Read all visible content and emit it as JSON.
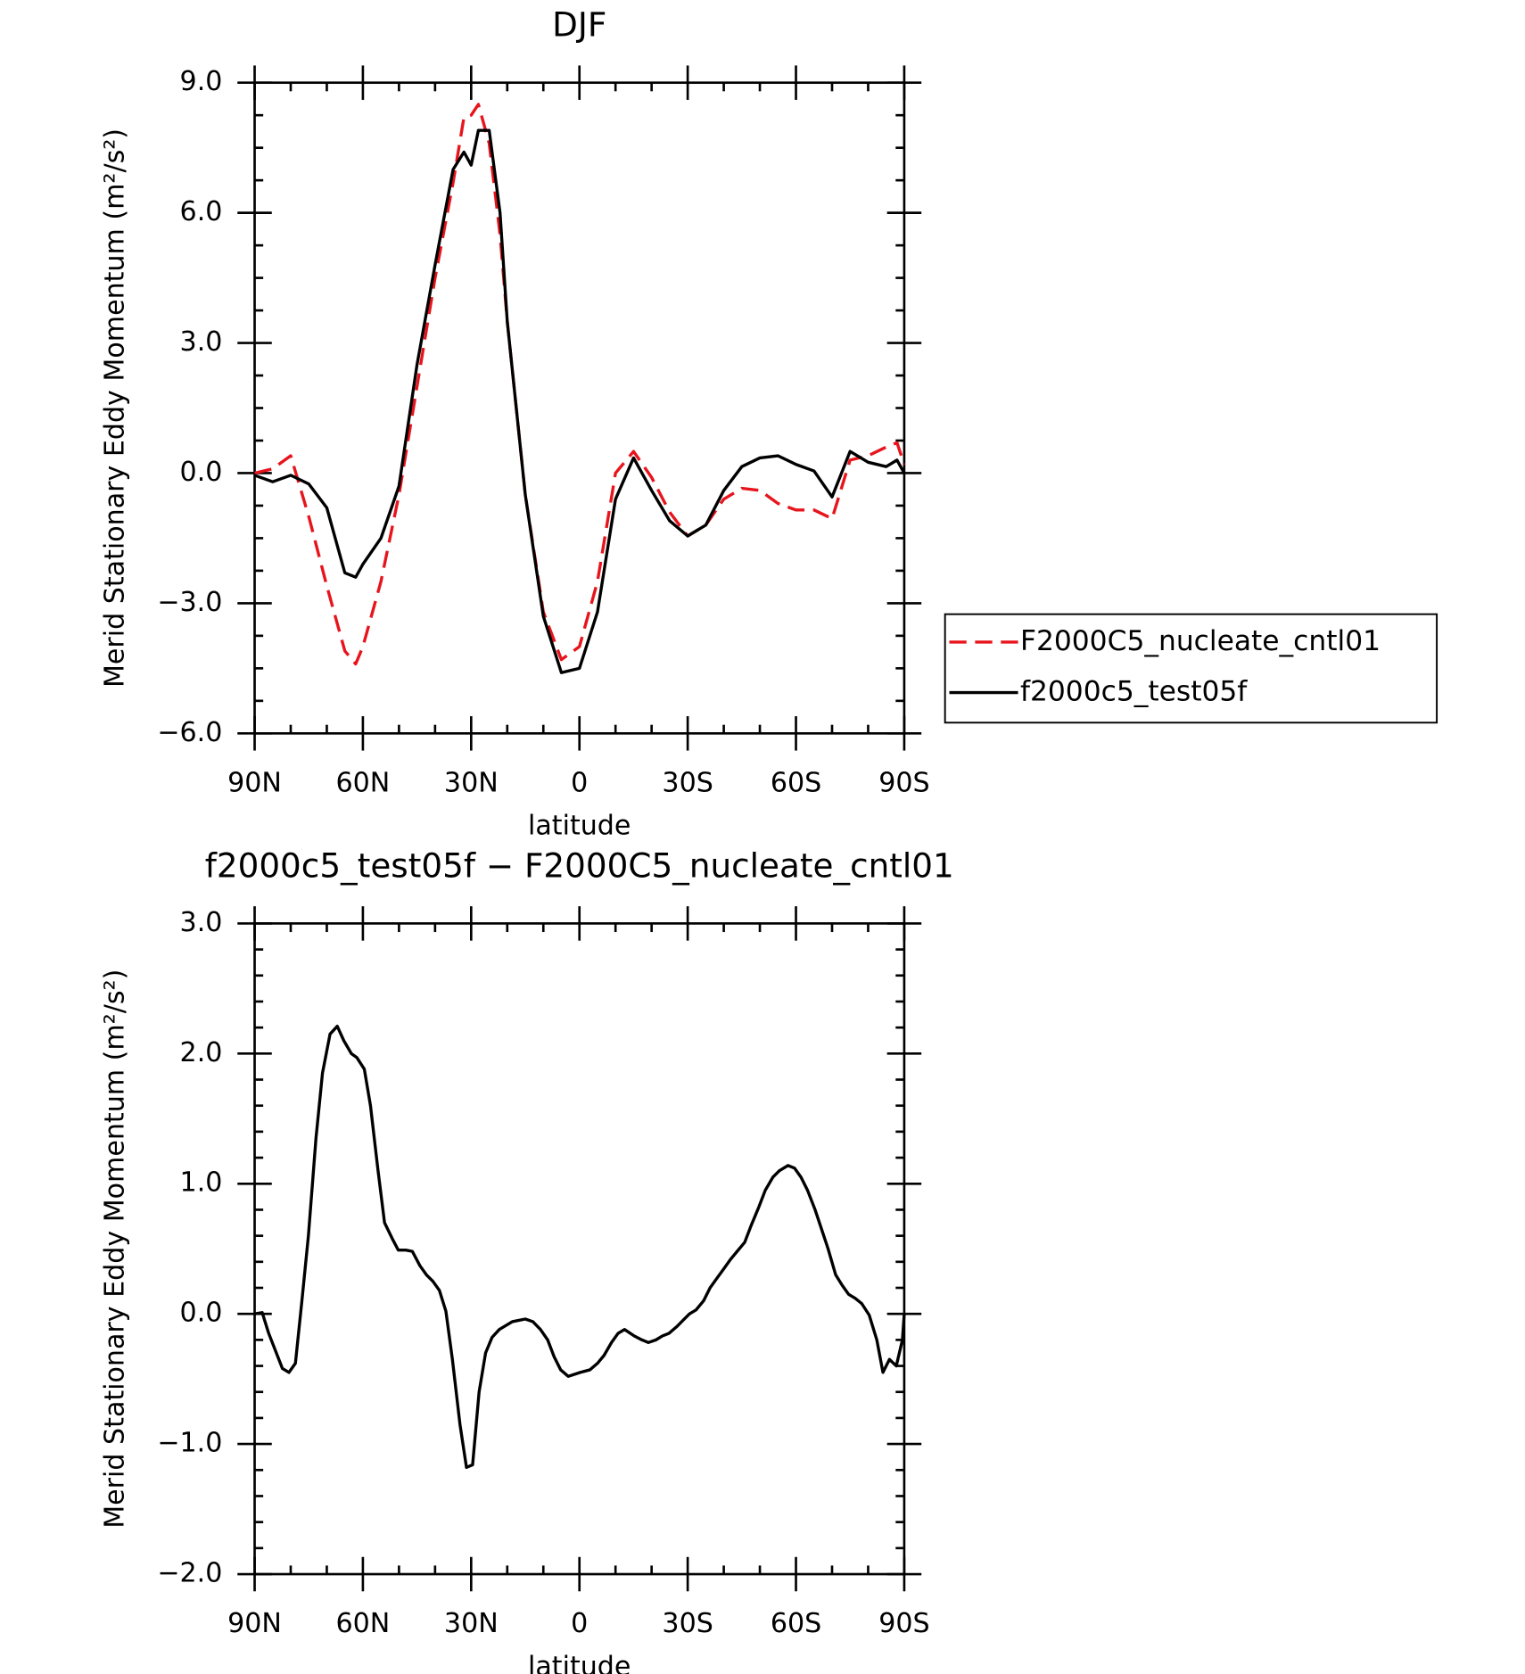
{
  "chart_data": [
    {
      "type": "line",
      "title": "DJF",
      "xlabel": "latitude",
      "ylabel": "Merid Stationary Eddy Momentum (m²/s²)",
      "x": [
        90,
        85,
        80,
        75,
        70,
        65,
        62,
        60,
        55,
        50,
        45,
        40,
        35,
        32,
        30,
        28,
        25,
        22,
        20,
        15,
        10,
        5,
        0,
        -5,
        -10,
        -15,
        -20,
        -25,
        -30,
        -35,
        -40,
        -45,
        -50,
        -55,
        -60,
        -65,
        -70,
        -75,
        -80,
        -85,
        -88,
        -90
      ],
      "series": [
        {
          "name": "F2000C5_nucleate_cntl01",
          "color": "#e8141c",
          "dashed": true,
          "values": [
            0.0,
            0.1,
            0.4,
            -1.0,
            -2.6,
            -4.1,
            -4.4,
            -4.0,
            -2.5,
            -0.5,
            2.0,
            4.5,
            6.7,
            8.2,
            8.25,
            8.5,
            7.6,
            5.5,
            3.5,
            -0.5,
            -3.2,
            -4.3,
            -4.0,
            -2.5,
            0.0,
            0.5,
            -0.1,
            -0.9,
            -1.45,
            -1.2,
            -0.6,
            -0.35,
            -0.4,
            -0.7,
            -0.85,
            -0.85,
            -1.05,
            0.3,
            0.4,
            0.6,
            0.7,
            0.2
          ]
        },
        {
          "name": "f2000c5_test05f",
          "color": "#000000",
          "dashed": false,
          "values": [
            -0.05,
            -0.2,
            -0.05,
            -0.25,
            -0.8,
            -2.3,
            -2.4,
            -2.1,
            -1.5,
            -0.3,
            2.5,
            4.8,
            7.0,
            7.4,
            7.1,
            7.9,
            7.9,
            6.0,
            3.5,
            -0.5,
            -3.3,
            -4.6,
            -4.5,
            -3.2,
            -0.6,
            0.35,
            -0.4,
            -1.1,
            -1.45,
            -1.2,
            -0.4,
            0.15,
            0.35,
            0.4,
            0.2,
            0.05,
            -0.55,
            0.5,
            0.25,
            0.15,
            0.3,
            0.0
          ]
        }
      ],
      "xlim": [
        90,
        -90
      ],
      "xticks": [
        {
          "value": 90,
          "label": "90N"
        },
        {
          "value": 60,
          "label": "60N"
        },
        {
          "value": 30,
          "label": "30N"
        },
        0,
        {
          "value": -30,
          "label": "30S"
        },
        {
          "value": -60,
          "label": "60S"
        },
        {
          "value": -90,
          "label": "90S"
        }
      ],
      "ylim": [
        -6,
        9
      ],
      "yticks": [
        {
          "value": -6,
          "label": "−6.0"
        },
        {
          "value": -3,
          "label": "−3.0"
        },
        {
          "value": 0,
          "label": "0.0"
        },
        {
          "value": 3,
          "label": "3.0"
        },
        {
          "value": 6,
          "label": "6.0"
        },
        {
          "value": 9,
          "label": "9.0"
        }
      ],
      "legend": "outside-right"
    },
    {
      "type": "line",
      "title": "f2000c5_test05f − F2000C5_nucleate_cntl01",
      "xlabel": "latitude",
      "ylabel": "Merid Stationary Eddy Momentum (m²/s²)",
      "x": [
        90,
        87.9,
        86.1,
        82.3,
        80.5,
        78.7,
        76.9,
        75.1,
        73.0,
        71.2,
        69.1,
        67.1,
        65.3,
        63.2,
        61.7,
        59.6,
        57.9,
        55.8,
        54.0,
        51.9,
        50.2,
        48.1,
        46.3,
        44.2,
        42.4,
        40.6,
        38.8,
        37.0,
        35.2,
        33.1,
        31.3,
        29.6,
        27.8,
        26.0,
        24.2,
        22.2,
        18.6,
        15.0,
        12.9,
        10.8,
        8.8,
        7.0,
        5.2,
        3.1,
        -0.2,
        -2.9,
        -5.0,
        -6.8,
        -8.9,
        -10.7,
        -12.5,
        -15.2,
        -17.3,
        -19.1,
        -21.2,
        -23.0,
        -24.8,
        -26.9,
        -28.7,
        -30.5,
        -32.3,
        -34.4,
        -36.2,
        -38.0,
        -40.1,
        -41.9,
        -43.7,
        -45.8,
        -47.6,
        -49.7,
        -51.5,
        -53.6,
        -55.4,
        -57.8,
        -59.6,
        -61.4,
        -63.2,
        -65.3,
        -67.1,
        -68.9,
        -71.0,
        -72.8,
        -74.6,
        -76.4,
        -78.2,
        -80.3,
        -82.4,
        -84.1,
        -85.9,
        -87.8,
        -89.5,
        -90
      ],
      "series": [
        {
          "name": "f2000c5_test05f − F2000C5_nucleate_cntl01",
          "color": "#000000",
          "dashed": false,
          "values": [
            0.0,
            0.01,
            -0.15,
            -0.42,
            -0.45,
            -0.38,
            0.1,
            0.6,
            1.35,
            1.85,
            2.15,
            2.21,
            2.1,
            2.0,
            1.97,
            1.88,
            1.6,
            1.1,
            0.7,
            0.58,
            0.49,
            0.49,
            0.48,
            0.37,
            0.3,
            0.25,
            0.18,
            0.02,
            -0.35,
            -0.85,
            -1.18,
            -1.16,
            -0.6,
            -0.3,
            -0.18,
            -0.12,
            -0.06,
            -0.04,
            -0.06,
            -0.12,
            -0.2,
            -0.33,
            -0.43,
            -0.48,
            -0.45,
            -0.43,
            -0.38,
            -0.32,
            -0.22,
            -0.15,
            -0.12,
            -0.17,
            -0.2,
            -0.22,
            -0.2,
            -0.17,
            -0.15,
            -0.1,
            -0.05,
            0.0,
            0.03,
            0.1,
            0.2,
            0.27,
            0.35,
            0.42,
            0.48,
            0.55,
            0.68,
            0.82,
            0.95,
            1.05,
            1.1,
            1.14,
            1.12,
            1.05,
            0.95,
            0.8,
            0.65,
            0.5,
            0.3,
            0.22,
            0.15,
            0.12,
            0.08,
            -0.01,
            -0.2,
            -0.45,
            -0.35,
            -0.4,
            -0.2,
            0.0
          ]
        }
      ],
      "xlim": [
        90,
        -90
      ],
      "xticks": [
        {
          "value": 90,
          "label": "90N"
        },
        {
          "value": 60,
          "label": "60N"
        },
        {
          "value": 30,
          "label": "30N"
        },
        0,
        {
          "value": -30,
          "label": "30S"
        },
        {
          "value": -60,
          "label": "60S"
        },
        {
          "value": -90,
          "label": "90S"
        }
      ],
      "ylim": [
        -2,
        3
      ],
      "yticks": [
        {
          "value": -2,
          "label": "−2.0"
        },
        {
          "value": -1,
          "label": "−1.0"
        },
        {
          "value": 0,
          "label": "0.0"
        },
        {
          "value": 1,
          "label": "1.0"
        },
        {
          "value": 2,
          "label": "2.0"
        },
        {
          "value": 3,
          "label": "3.0"
        }
      ]
    }
  ]
}
